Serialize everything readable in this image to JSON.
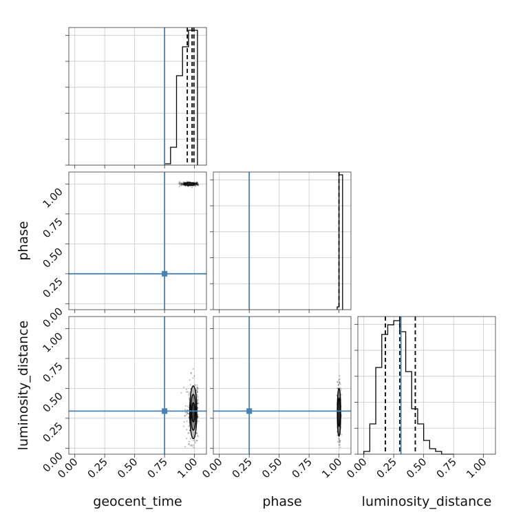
{
  "figure": {
    "xlabels": [
      "geocent_time",
      "phase",
      "luminosity_distance"
    ],
    "ylabels": [
      "phase",
      "luminosity_distance"
    ]
  },
  "chart_data": {
    "type": "corner",
    "parameters": [
      "geocent_time",
      "phase",
      "luminosity_distance"
    ],
    "truths": [
      0.75,
      0.25,
      0.31
    ],
    "truth_color": "#4682b4",
    "axis_range": [
      -0.05,
      1.1
    ],
    "ticks": [
      0.0,
      0.25,
      0.5,
      0.75,
      1.0
    ],
    "tick_labels": [
      "0.00",
      "0.25",
      "0.50",
      "0.75",
      "1.00"
    ],
    "grid": true,
    "histograms": [
      {
        "parameter": "geocent_time",
        "bins": [
          0.75,
          0.8,
          0.85,
          0.9,
          0.95,
          1.0,
          1.025
        ],
        "counts": [
          0.01,
          0.13,
          0.65,
          0.86,
          0.98,
          0.98
        ],
        "quantiles": [
          0.94,
          0.98,
          0.995
        ]
      },
      {
        "parameter": "phase",
        "bins": [
          0.985,
          1.0,
          1.03
        ],
        "counts": [
          0.02,
          0.98
        ],
        "quantiles": [
          1.0
        ]
      },
      {
        "parameter": "luminosity_distance",
        "bins": [
          0.0,
          0.05,
          0.1,
          0.15,
          0.2,
          0.25,
          0.3,
          0.35,
          0.4,
          0.45,
          0.5,
          0.55,
          0.6,
          0.65,
          0.7,
          0.75
        ],
        "counts": [
          0.02,
          0.22,
          0.63,
          0.87,
          0.94,
          0.97,
          0.89,
          0.6,
          0.33,
          0.22,
          0.1,
          0.04,
          0.02,
          0.0,
          0.0
        ],
        "quantiles": [
          0.18,
          0.3,
          0.43
        ]
      }
    ],
    "scatter_panels": [
      {
        "x": "geocent_time",
        "y": "phase",
        "center": [
          0.96,
          1.0
        ],
        "spread": [
          0.04,
          0.008
        ],
        "levels": [
          {
            "rx": 0.04,
            "ry": 0.012,
            "fill": "#222222"
          }
        ]
      },
      {
        "x": "geocent_time",
        "y": "luminosity_distance",
        "center": [
          0.99,
          0.3
        ],
        "spread": [
          0.03,
          0.13
        ],
        "levels": [
          {
            "rx": 0.03,
            "ry": 0.22,
            "fill": "#bdbdbd"
          },
          {
            "rx": 0.022,
            "ry": 0.15,
            "fill": "#8a8a8a"
          },
          {
            "rx": 0.014,
            "ry": 0.08,
            "fill": "#3a3a3a"
          }
        ]
      },
      {
        "x": "phase",
        "y": "luminosity_distance",
        "center": [
          1.0,
          0.3
        ],
        "spread": [
          0.007,
          0.13
        ],
        "levels": [
          {
            "rx": 0.014,
            "ry": 0.2,
            "fill": "#9a9a9a"
          },
          {
            "rx": 0.009,
            "ry": 0.12,
            "fill": "#444444"
          }
        ]
      }
    ]
  }
}
